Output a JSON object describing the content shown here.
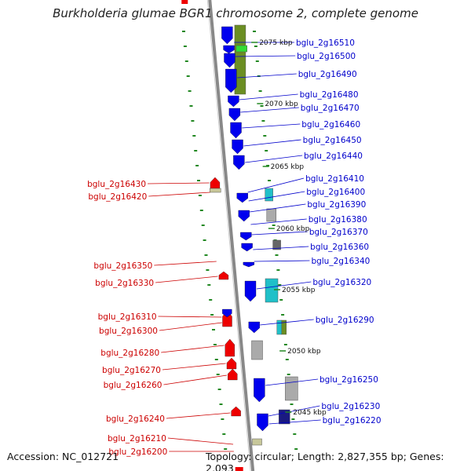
{
  "title": "Burkholderia glumae BGR1 chromosome 2, complete genome",
  "accession": "Accession: NC_012721",
  "summary": "Topology: circular; Length: 2,827,355 bp; Genes: 2,093",
  "colors": {
    "forward": "#0000ee",
    "reverse": "#ee0000",
    "label_forward": "#0000cc",
    "label_reverse": "#cc0000",
    "backbone": "#888888",
    "ruler_dots": "#228822",
    "orthology_olive": "#6b8e23",
    "orthology_cyan": "#20c0c8",
    "orthology_grey": "#aaaaaa",
    "orthology_navy": "#1a1a80"
  },
  "kbp_marks": [
    "2075 kbp",
    "2070 kbp",
    "2065 kbp",
    "2060 kbp",
    "2055 kbp",
    "2050 kbp",
    "2045 kbp"
  ],
  "forward_genes": [
    "bglu_2g16510",
    "bglu_2g16500",
    "bglu_2g16490",
    "bglu_2g16480",
    "bglu_2g16470",
    "bglu_2g16460",
    "bglu_2g16450",
    "bglu_2g16440",
    "bglu_2g16410",
    "bglu_2g16400",
    "bglu_2g16390",
    "bglu_2g16380",
    "bglu_2g16370",
    "bglu_2g16360",
    "bglu_2g16340",
    "bglu_2g16320",
    "bglu_2g16290",
    "bglu_2g16250",
    "bglu_2g16230",
    "bglu_2g16220"
  ],
  "reverse_genes": [
    "bglu_2g16430",
    "bglu_2g16420",
    "bglu_2g16350",
    "bglu_2g16330",
    "bglu_2g16310",
    "bglu_2g16300",
    "bglu_2g16280",
    "bglu_2g16270",
    "bglu_2g16260",
    "bglu_2g16240",
    "bglu_2g16210",
    "bglu_2g16200"
  ]
}
